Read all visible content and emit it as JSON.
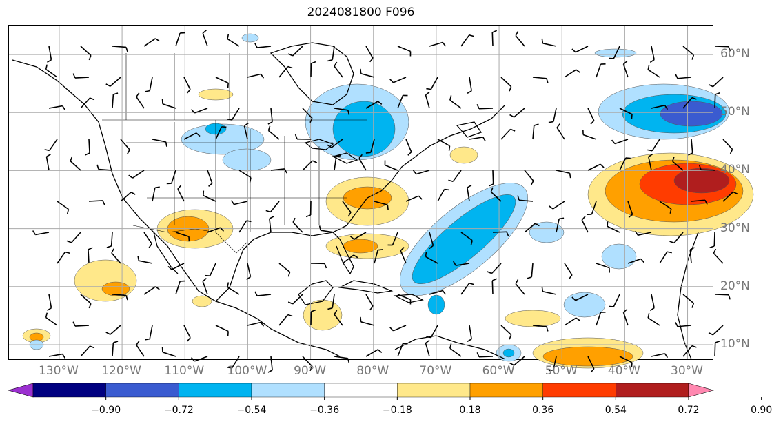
{
  "title": "2024081800 F096",
  "map": {
    "lon_labels": [
      {
        "text": "130°W",
        "lon": -130
      },
      {
        "text": "120°W",
        "lon": -120
      },
      {
        "text": "110°W",
        "lon": -110
      },
      {
        "text": "100°W",
        "lon": -100
      },
      {
        "text": "90°W",
        "lon": -90
      },
      {
        "text": "80°W",
        "lon": -80
      },
      {
        "text": "70°W",
        "lon": -70
      },
      {
        "text": "60°W",
        "lon": -60
      },
      {
        "text": "50°W",
        "lon": -50
      },
      {
        "text": "40°W",
        "lon": -40
      },
      {
        "text": "30°W",
        "lon": -30
      }
    ],
    "lat_labels": [
      {
        "text": "60°N",
        "lat": 60
      },
      {
        "text": "50°N",
        "lat": 50
      },
      {
        "text": "40°N",
        "lat": 40
      },
      {
        "text": "30°N",
        "lat": 30
      },
      {
        "text": "20°N",
        "lat": 20
      },
      {
        "text": "10°N",
        "lat": 10
      }
    ],
    "grid_color": "#aaaaaa",
    "label_color": "#777777"
  },
  "colorbar": {
    "ticks": [
      "−0.90",
      "−0.72",
      "−0.54",
      "−0.36",
      "−0.18",
      "0.18",
      "0.36",
      "0.54",
      "0.72",
      "0.90"
    ],
    "colors": [
      "#9b30d0",
      "#000080",
      "#3a5bd0",
      "#00b4f0",
      "#b0e0ff",
      "#ffffff",
      "#ffe88a",
      "#ffa000",
      "#ff3c00",
      "#b01e1e",
      "#ff88b0"
    ],
    "extend": "both"
  }
}
